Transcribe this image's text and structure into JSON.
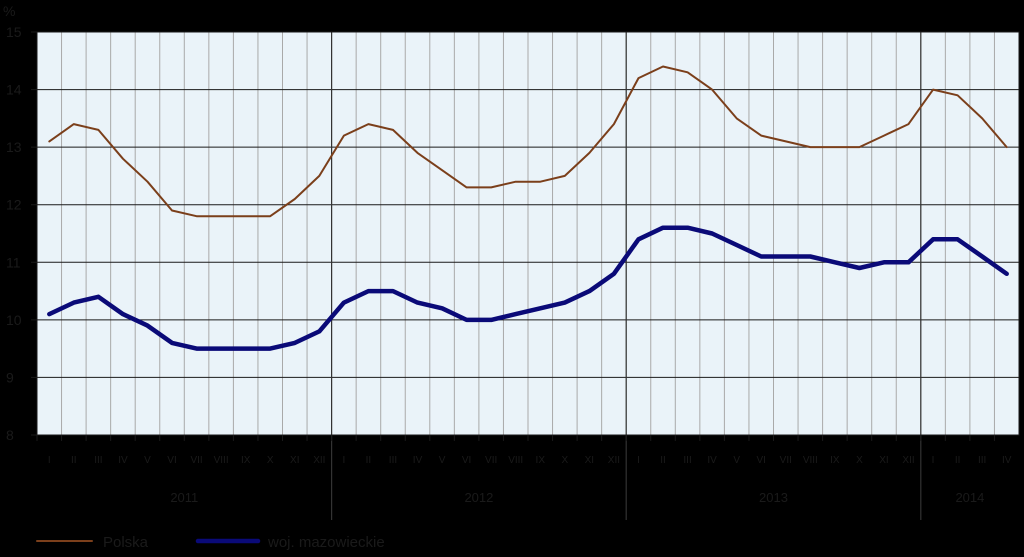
{
  "chart_data": {
    "type": "line",
    "ylabel": "%",
    "ylim": [
      8,
      15
    ],
    "yticks": [
      "8",
      "9",
      "10",
      "11",
      "12",
      "13",
      "14",
      "15"
    ],
    "grid": true,
    "legend_position": "bottom-left",
    "months": [
      "I",
      "II",
      "III",
      "IV",
      "V",
      "VI",
      "VII",
      "VIII",
      "IX",
      "X",
      "XI",
      "XII",
      "I",
      "II",
      "III",
      "IV",
      "V",
      "VI",
      "VII",
      "VIII",
      "IX",
      "X",
      "XI",
      "XII",
      "I",
      "II",
      "III",
      "IV",
      "V",
      "VI",
      "VII",
      "VIII",
      "IX",
      "X",
      "XI",
      "XII",
      "I",
      "II",
      "III",
      "IV"
    ],
    "years": [
      {
        "label": "2011",
        "months": 12
      },
      {
        "label": "2012",
        "months": 12
      },
      {
        "label": "2013",
        "months": 12
      },
      {
        "label": "2014",
        "months": 4
      }
    ],
    "series": [
      {
        "name": "Polska",
        "color": "#7b3f1b",
        "values": [
          13.1,
          13.4,
          13.3,
          12.8,
          12.4,
          11.9,
          11.8,
          11.8,
          11.8,
          11.8,
          12.1,
          12.5,
          13.2,
          13.4,
          13.3,
          12.9,
          12.6,
          12.3,
          12.3,
          12.4,
          12.4,
          12.5,
          12.9,
          13.4,
          14.2,
          14.4,
          14.3,
          14.0,
          13.5,
          13.2,
          13.1,
          13.0,
          13.0,
          13.0,
          13.2,
          13.4,
          14.0,
          13.9,
          13.5,
          13.0
        ]
      },
      {
        "name": "woj. mazowieckie",
        "color": "#0a0a78",
        "values": [
          10.1,
          10.3,
          10.4,
          10.1,
          9.9,
          9.6,
          9.5,
          9.5,
          9.5,
          9.5,
          9.6,
          9.8,
          10.3,
          10.5,
          10.5,
          10.3,
          10.2,
          10.0,
          10.0,
          10.1,
          10.2,
          10.3,
          10.5,
          10.8,
          11.4,
          11.6,
          11.6,
          11.5,
          11.3,
          11.1,
          11.1,
          11.1,
          11.0,
          10.9,
          11.0,
          11.0,
          11.4,
          11.4,
          11.1,
          10.8
        ]
      }
    ]
  }
}
